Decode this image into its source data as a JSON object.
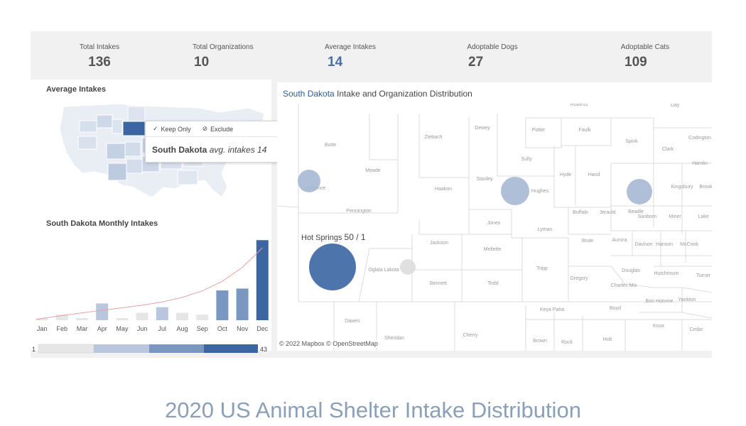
{
  "kpis": [
    {
      "label": "Total Intakes",
      "value": "136"
    },
    {
      "label": "Total Organizations",
      "value": "10"
    },
    {
      "label": "Average Intakes",
      "value": "14"
    },
    {
      "label": "Adoptable Dogs",
      "value": "27"
    },
    {
      "label": "Adoptable Cats",
      "value": "109"
    }
  ],
  "us_map": {
    "title": "Average Intakes",
    "tooltip": {
      "keep_only": "Keep Only",
      "exclude": "Exclude",
      "state": "South Dakota",
      "metric_text": "avg. intakes 14"
    }
  },
  "monthly": {
    "title": "South Dakota Monthly Intakes",
    "chart_data": {
      "type": "bar",
      "categories": [
        "Jan",
        "Feb",
        "Mar",
        "Apr",
        "May",
        "Jun",
        "Jul",
        "Aug",
        "Sep",
        "Oct",
        "Nov",
        "Dec"
      ],
      "values": [
        1,
        3,
        1,
        9,
        1,
        4,
        7,
        4,
        3,
        16,
        17,
        43
      ],
      "ylim": [
        0,
        45
      ]
    },
    "range_min": "1",
    "range_max": "43"
  },
  "sd_map": {
    "title_highlight": "South Dakota",
    "title_rest": " Intake and Organization Distribution",
    "hover_label": "Hot Springs",
    "hover_value": "50",
    "hover_count": " / 1",
    "credit": "© 2022 Mapbox  © OpenStreetMap",
    "counties": [
      {
        "name": "Day",
        "xy": [
          950,
          150
        ]
      },
      {
        "name": "Roberts",
        "xy": [
          815,
          149
        ]
      },
      {
        "name": "Codington",
        "xy": [
          985,
          196
        ]
      },
      {
        "name": "Dewey",
        "xy": [
          679,
          182
        ]
      },
      {
        "name": "Potter",
        "xy": [
          758,
          185
        ]
      },
      {
        "name": "Faulk",
        "xy": [
          823,
          185
        ]
      },
      {
        "name": "Ziebach",
        "xy": [
          610,
          195
        ]
      },
      {
        "name": "Spink",
        "xy": [
          889,
          201
        ]
      },
      {
        "name": "Clark",
        "xy": [
          940,
          212
        ]
      },
      {
        "name": "Butte",
        "xy": [
          465,
          206
        ]
      },
      {
        "name": "Sully",
        "xy": [
          741,
          226
        ]
      },
      {
        "name": "Hamlin",
        "xy": [
          985,
          232
        ]
      },
      {
        "name": "Meade",
        "xy": [
          525,
          242
        ]
      },
      {
        "name": "Hyde",
        "xy": [
          796,
          248
        ]
      },
      {
        "name": "Hand",
        "xy": [
          836,
          248
        ]
      },
      {
        "name": "Stanley",
        "xy": [
          682,
          254
        ]
      },
      {
        "name": "Hughes",
        "xy": [
          760,
          271
        ]
      },
      {
        "name": "Haakon",
        "xy": [
          624,
          268
        ]
      },
      {
        "name": "Kingsbury",
        "xy": [
          960,
          265
        ]
      },
      {
        "name": "Brookings",
        "xy": [
          1000,
          265
        ]
      },
      {
        "name": "Lawrence",
        "xy": [
          443,
          267
        ]
      },
      {
        "name": "Pennington",
        "xy": [
          505,
          299
        ]
      },
      {
        "name": "Buffalo",
        "xy": [
          817,
          301
        ]
      },
      {
        "name": "Jerauld",
        "xy": [
          855,
          301
        ]
      },
      {
        "name": "Beadle",
        "xy": [
          895,
          300
        ]
      },
      {
        "name": "Sanborn",
        "xy": [
          911,
          307
        ]
      },
      {
        "name": "Miner",
        "xy": [
          950,
          307
        ]
      },
      {
        "name": "Lake",
        "xy": [
          990,
          307
        ]
      },
      {
        "name": "Jones",
        "xy": [
          695,
          316
        ]
      },
      {
        "name": "Lyman",
        "xy": [
          767,
          325
        ]
      },
      {
        "name": "Brule",
        "xy": [
          827,
          341
        ]
      },
      {
        "name": "Aurora",
        "xy": [
          872,
          340
        ]
      },
      {
        "name": "Davison",
        "xy": [
          906,
          346
        ]
      },
      {
        "name": "Hanson",
        "xy": [
          935,
          346
        ]
      },
      {
        "name": "McCook",
        "xy": [
          970,
          346
        ]
      },
      {
        "name": "Jackson",
        "xy": [
          618,
          344
        ]
      },
      {
        "name": "Mellette",
        "xy": [
          693,
          353
        ]
      },
      {
        "name": "Oglala Lakota",
        "xy": [
          540,
          382
        ]
      },
      {
        "name": "Tripp",
        "xy": [
          763,
          380
        ]
      },
      {
        "name": "Douglas",
        "xy": [
          888,
          383
        ]
      },
      {
        "name": "Hutchinson",
        "xy": [
          938,
          387
        ]
      },
      {
        "name": "Turner",
        "xy": [
          990,
          390
        ]
      },
      {
        "name": "Gregory",
        "xy": [
          815,
          394
        ]
      },
      {
        "name": "Charles Mix",
        "xy": [
          878,
          404
        ]
      },
      {
        "name": "Bennett",
        "xy": [
          617,
          401
        ]
      },
      {
        "name": "Todd",
        "xy": [
          694,
          401
        ]
      },
      {
        "name": "Bon Homme",
        "xy": [
          928,
          426
        ]
      },
      {
        "name": "Yankton",
        "xy": [
          967,
          424
        ]
      },
      {
        "name": "Keya Paha",
        "xy": [
          777,
          438
        ]
      },
      {
        "name": "Boyd",
        "xy": [
          866,
          436
        ]
      },
      {
        "name": "Dawes",
        "xy": [
          496,
          454
        ]
      },
      {
        "name": "Knox",
        "xy": [
          927,
          461
        ]
      },
      {
        "name": "Cedar",
        "xy": [
          980,
          466
        ]
      },
      {
        "name": "Sheridan",
        "xy": [
          555,
          478
        ]
      },
      {
        "name": "Cherry",
        "xy": [
          662,
          474
        ]
      },
      {
        "name": "Brown",
        "xy": [
          760,
          482
        ]
      },
      {
        "name": "Rock",
        "xy": [
          798,
          484
        ]
      },
      {
        "name": "Holt",
        "xy": [
          855,
          480
        ]
      }
    ],
    "bubbles": [
      {
        "name": "Lawrence",
        "xy": [
          435,
          255
        ],
        "r": 16,
        "color": "#a6b8d4"
      },
      {
        "name": "Hughes",
        "xy": [
          725,
          269
        ],
        "r": 20,
        "color": "#a6b8d4"
      },
      {
        "name": "Kingsbury",
        "xy": [
          900,
          270
        ],
        "r": 18,
        "color": "#a6b8d4"
      },
      {
        "name": "Oglala Lakota",
        "xy": [
          574,
          376
        ],
        "r": 11,
        "color": "#dddddd"
      },
      {
        "name": "Hot Springs",
        "xy": [
          468,
          376
        ],
        "r": 33,
        "color": "#3b66a2"
      }
    ]
  },
  "colors": {
    "dark": "#3b66a2",
    "mid": "#7a97c2",
    "light": "#b8c7de",
    "pale": "#e6e6e6"
  },
  "footer": {
    "title": "2020 US Animal Shelter Intake Distribution"
  }
}
